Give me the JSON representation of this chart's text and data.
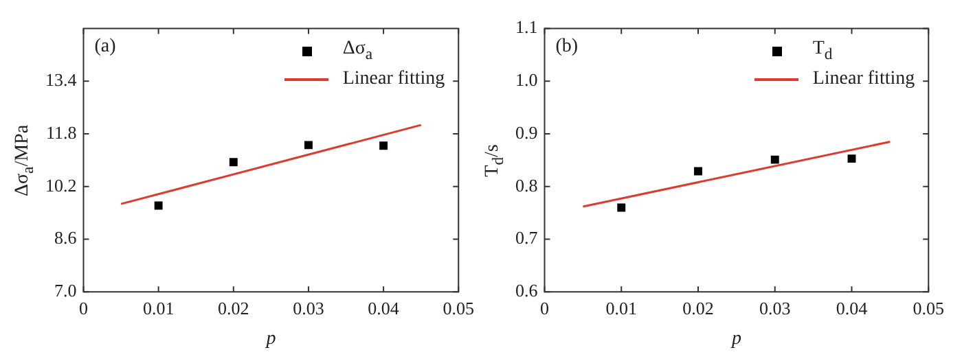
{
  "chart_data": [
    {
      "type": "scatter",
      "xlabel": "p",
      "ylabel": "Δσ$_{a}$/MPa",
      "annotations": [
        "(a)"
      ],
      "xlim": [
        0,
        0.05
      ],
      "xticks": [
        0,
        0.01,
        0.02,
        0.03,
        0.04,
        0.05
      ],
      "ylim": [
        7.0,
        15.0
      ],
      "yticks": [
        {
          "value": 7.0,
          "label": "7.0"
        },
        8.6,
        10.2,
        11.8,
        13.4
      ],
      "grid": false,
      "legend": "top right",
      "series": [
        {
          "type": "scatter",
          "name": "Δσ$_{a}$",
          "marker": "square",
          "color": "#000000",
          "x": [
            0.01,
            0.02,
            0.03,
            0.04
          ],
          "values": [
            9.62,
            10.94,
            11.46,
            11.44
          ]
        },
        {
          "type": "line",
          "name": "Linear fitting",
          "color": "#e03a2f",
          "line_style": "solid",
          "x": [
            0.005,
            0.045
          ],
          "values": [
            9.67,
            12.07
          ]
        }
      ]
    },
    {
      "type": "scatter",
      "xlabel": "p",
      "ylabel": "T$_{d}$/s",
      "annotations": [
        "(b)"
      ],
      "xlim": [
        0,
        0.05
      ],
      "xticks": [
        0,
        0.01,
        0.02,
        0.03,
        0.04,
        0.05
      ],
      "ylim": [
        0.6,
        1.1
      ],
      "yticks": [
        0.6,
        0.7,
        0.8,
        0.9,
        {
          "value": 1.0,
          "label": "1.0"
        },
        1.1
      ],
      "grid": false,
      "legend": "top right",
      "series": [
        {
          "type": "scatter",
          "name": "T$_{d}$",
          "marker": "square",
          "color": "#000000",
          "x": [
            0.01,
            0.02,
            0.03,
            0.04
          ],
          "values": [
            0.76,
            0.829,
            0.851,
            0.853
          ]
        },
        {
          "type": "line",
          "name": "Linear fitting",
          "color": "#e03a2f",
          "line_style": "solid",
          "x": [
            0.005,
            0.045
          ],
          "values": [
            0.762,
            0.885
          ]
        }
      ]
    }
  ]
}
